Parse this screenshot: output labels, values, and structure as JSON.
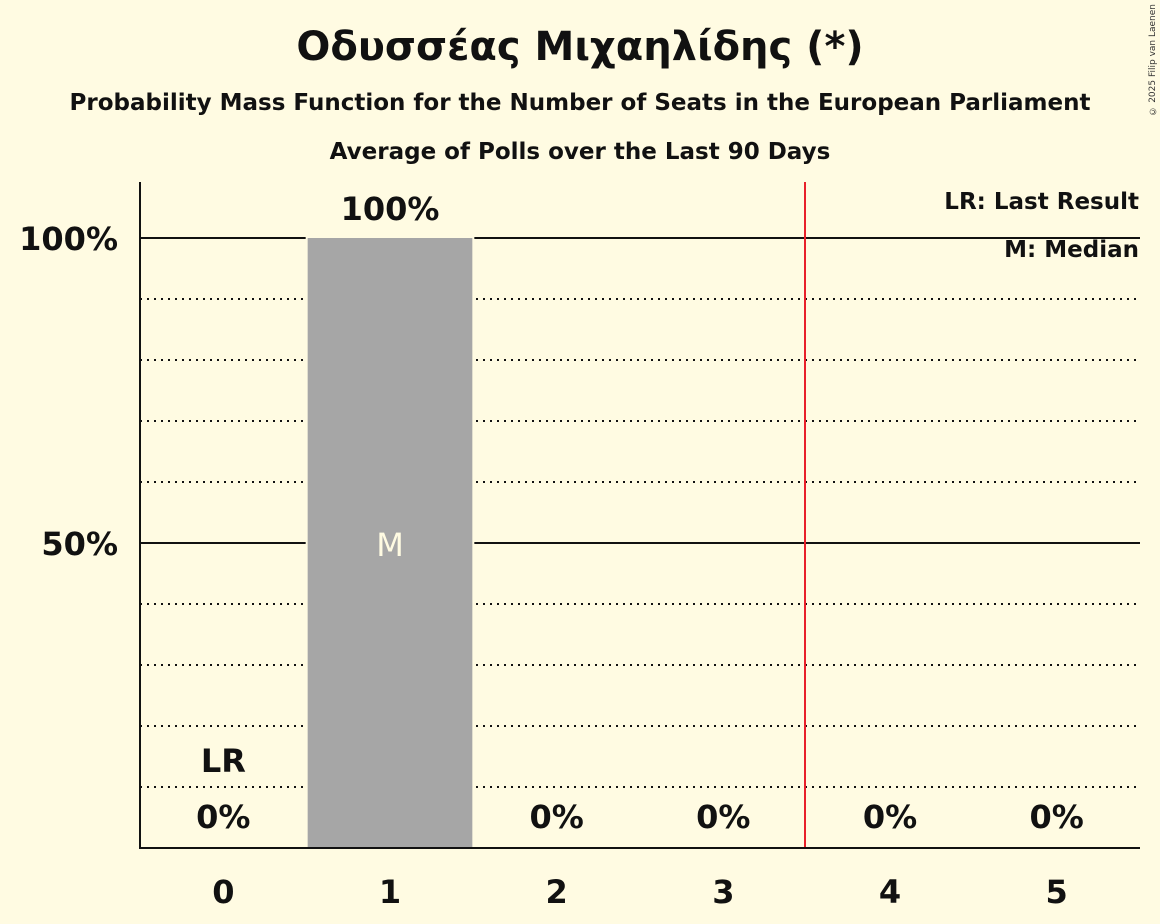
{
  "header": {
    "title": "Οδυσσέας Μιχαηλίδης (*)",
    "subtitle": "Probability Mass Function for the Number of Seats in the European Parliament",
    "subtitle2": "Average of Polls over the Last 90 Days"
  },
  "copyright": "© 2025 Filip van Laenen",
  "legend": {
    "lr": "LR: Last Result",
    "m": "M: Median"
  },
  "colors": {
    "background": "#fffbe2",
    "bar": "#a6a6a6",
    "last_result_line": "#e8202a",
    "median_label": "#fffbe2"
  },
  "chart_data": {
    "type": "bar",
    "title": "Οδυσσέας Μιχαηλίδης (*)",
    "subtitle": "Probability Mass Function for the Number of Seats in the European Parliament — Average of Polls over the Last 90 Days",
    "xlabel": "",
    "ylabel": "",
    "categories": [
      "0",
      "1",
      "2",
      "3",
      "4",
      "5"
    ],
    "values": [
      0,
      100,
      0,
      0,
      0,
      0
    ],
    "value_labels": [
      "0%",
      "100%",
      "0%",
      "0%",
      "0%",
      "0%"
    ],
    "ylim": [
      0,
      100
    ],
    "yticks": [
      {
        "value": 50,
        "label": "50%"
      },
      {
        "value": 100,
        "label": "100%"
      }
    ],
    "grid": {
      "major": [
        50,
        100
      ],
      "minor_dotted": [
        10,
        20,
        30,
        40,
        60,
        70,
        80,
        90
      ]
    },
    "annotations": [
      {
        "category": "0",
        "text": "LR",
        "meaning": "Last Result"
      },
      {
        "category": "1",
        "text": "M",
        "meaning": "Median"
      }
    ],
    "last_result_line_between": [
      "3",
      "4"
    ],
    "legend": [
      "LR: Last Result",
      "M: Median"
    ],
    "legend_position": "top-right"
  }
}
